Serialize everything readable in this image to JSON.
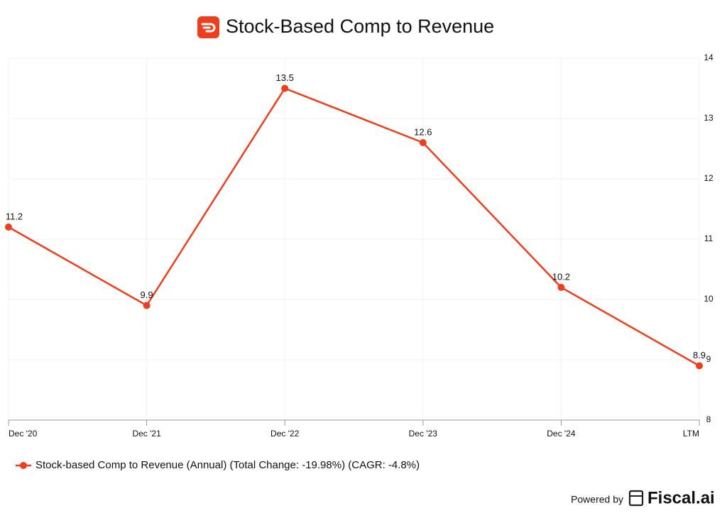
{
  "chart_data": {
    "type": "line",
    "title": "Stock-Based Comp to Revenue",
    "categories": [
      "Dec '20",
      "Dec '21",
      "Dec '22",
      "Dec '23",
      "Dec '24",
      "LTM"
    ],
    "series": [
      {
        "name": "Stock-based Comp to Revenue (Annual) (Total Change: -19.98%) (CAGR: -4.8%)",
        "color": "#ee3e1e",
        "values": [
          11.2,
          9.9,
          13.5,
          12.6,
          10.2,
          8.9
        ]
      }
    ],
    "ylim": [
      8,
      14
    ],
    "yticks": [
      8,
      9,
      10,
      11,
      12,
      13,
      14
    ],
    "grid": true,
    "legend": "bottom-left"
  },
  "footer": {
    "powered_by": "Powered by",
    "brand": "Fiscal.ai"
  }
}
